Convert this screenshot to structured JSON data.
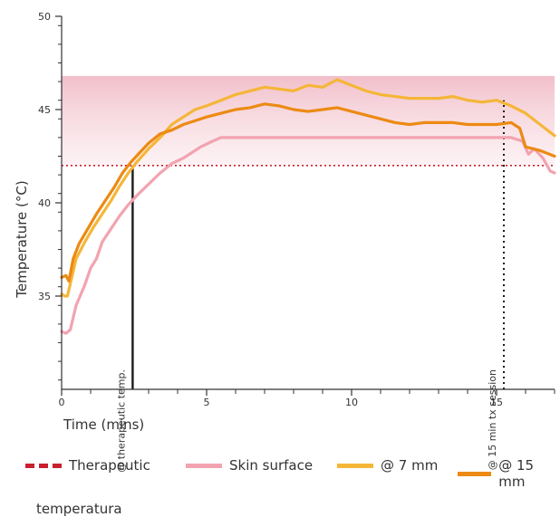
{
  "chart_data": {
    "type": "line",
    "xlabel": "Time (mins)",
    "ylabel": "Temperature (°C)",
    "xlim": [
      0,
      17
    ],
    "ylim": [
      30,
      50
    ],
    "x_ticks": [
      0,
      5,
      10,
      15
    ],
    "x_tick_labels": [
      "0",
      "5",
      "10",
      "15"
    ],
    "x_minor_ticks": [
      1,
      2,
      3,
      4,
      6,
      7,
      8,
      9,
      11,
      12,
      13,
      14,
      16,
      17
    ],
    "y_ticks": [
      35,
      40,
      45,
      50
    ],
    "y_tick_labels": [
      "35",
      "40",
      "45",
      "50"
    ],
    "grid": false,
    "legend_position": "bottom",
    "band": {
      "y_from": 42,
      "y_to": 46.8,
      "color": "#f0b8c4"
    },
    "reference_lines": [
      {
        "orientation": "horizontal",
        "value": 42,
        "style": "dotted",
        "color": "#c8202e"
      },
      {
        "orientation": "vertical",
        "value": 2.45,
        "style": "solid",
        "color": "#1a1a1a",
        "y_to": 42,
        "label": "@ therapeutic temp."
      },
      {
        "orientation": "vertical",
        "value": 15.25,
        "style": "dotted",
        "color": "#1a1a1a",
        "y_to": 45.5,
        "label": "@ 15 min tx session"
      }
    ],
    "series": [
      {
        "name": "Skin surface",
        "color": "#f2a3b0",
        "points": [
          [
            0,
            33.1
          ],
          [
            0.15,
            33.0
          ],
          [
            0.3,
            33.2
          ],
          [
            0.5,
            34.5
          ],
          [
            0.8,
            35.6
          ],
          [
            1.0,
            36.5
          ],
          [
            1.2,
            37.0
          ],
          [
            1.4,
            37.9
          ],
          [
            1.7,
            38.6
          ],
          [
            2.0,
            39.3
          ],
          [
            2.3,
            39.9
          ],
          [
            2.6,
            40.4
          ],
          [
            3.0,
            41.0
          ],
          [
            3.4,
            41.6
          ],
          [
            3.8,
            42.1
          ],
          [
            4.2,
            42.4
          ],
          [
            4.5,
            42.7
          ],
          [
            4.8,
            43.0
          ],
          [
            5.2,
            43.3
          ],
          [
            5.5,
            43.5
          ],
          [
            6,
            43.5
          ],
          [
            7,
            43.5
          ],
          [
            8,
            43.5
          ],
          [
            9,
            43.5
          ],
          [
            10,
            43.5
          ],
          [
            11,
            43.5
          ],
          [
            12,
            43.5
          ],
          [
            13,
            43.5
          ],
          [
            14,
            43.5
          ],
          [
            15,
            43.5
          ],
          [
            15.5,
            43.5
          ],
          [
            15.9,
            43.3
          ],
          [
            16.1,
            42.6
          ],
          [
            16.3,
            42.9
          ],
          [
            16.6,
            42.4
          ],
          [
            16.85,
            41.7
          ],
          [
            17,
            41.6
          ]
        ]
      },
      {
        "name": "@ 7 mm",
        "color": "#f5b638",
        "points": [
          [
            0,
            35.1
          ],
          [
            0.1,
            35.0
          ],
          [
            0.2,
            35.0
          ],
          [
            0.35,
            36.0
          ],
          [
            0.5,
            37.0
          ],
          [
            0.8,
            37.9
          ],
          [
            1.1,
            38.7
          ],
          [
            1.4,
            39.4
          ],
          [
            1.7,
            40.1
          ],
          [
            2.0,
            40.9
          ],
          [
            2.3,
            41.6
          ],
          [
            2.6,
            42.2
          ],
          [
            3.0,
            42.9
          ],
          [
            3.4,
            43.5
          ],
          [
            3.8,
            44.2
          ],
          [
            4.2,
            44.6
          ],
          [
            4.6,
            45.0
          ],
          [
            5.0,
            45.2
          ],
          [
            5.5,
            45.5
          ],
          [
            6.0,
            45.8
          ],
          [
            6.5,
            46.0
          ],
          [
            7.0,
            46.2
          ],
          [
            7.5,
            46.1
          ],
          [
            8.0,
            46.0
          ],
          [
            8.5,
            46.3
          ],
          [
            9.0,
            46.2
          ],
          [
            9.5,
            46.6
          ],
          [
            10.0,
            46.3
          ],
          [
            10.5,
            46.0
          ],
          [
            11.0,
            45.8
          ],
          [
            11.5,
            45.7
          ],
          [
            12.0,
            45.6
          ],
          [
            12.5,
            45.6
          ],
          [
            13.0,
            45.6
          ],
          [
            13.5,
            45.7
          ],
          [
            14.0,
            45.5
          ],
          [
            14.5,
            45.4
          ],
          [
            15.0,
            45.5
          ],
          [
            15.5,
            45.2
          ],
          [
            16.0,
            44.8
          ],
          [
            16.5,
            44.2
          ],
          [
            17.0,
            43.6
          ]
        ]
      },
      {
        "name": "@ 15 mm",
        "color": "#ec8a13",
        "points": [
          [
            0,
            36.0
          ],
          [
            0.15,
            36.1
          ],
          [
            0.25,
            35.8
          ],
          [
            0.4,
            37.0
          ],
          [
            0.6,
            37.8
          ],
          [
            0.9,
            38.6
          ],
          [
            1.2,
            39.4
          ],
          [
            1.5,
            40.1
          ],
          [
            1.8,
            40.8
          ],
          [
            2.1,
            41.6
          ],
          [
            2.4,
            42.2
          ],
          [
            2.7,
            42.7
          ],
          [
            3.0,
            43.2
          ],
          [
            3.4,
            43.7
          ],
          [
            3.8,
            43.9
          ],
          [
            4.2,
            44.2
          ],
          [
            4.6,
            44.4
          ],
          [
            5.0,
            44.6
          ],
          [
            5.5,
            44.8
          ],
          [
            6.0,
            45.0
          ],
          [
            6.5,
            45.1
          ],
          [
            7.0,
            45.3
          ],
          [
            7.5,
            45.2
          ],
          [
            8.0,
            45.0
          ],
          [
            8.5,
            44.9
          ],
          [
            9.0,
            45.0
          ],
          [
            9.5,
            45.1
          ],
          [
            10.0,
            44.9
          ],
          [
            10.5,
            44.7
          ],
          [
            11.0,
            44.5
          ],
          [
            11.5,
            44.3
          ],
          [
            12.0,
            44.2
          ],
          [
            12.5,
            44.3
          ],
          [
            13.0,
            44.3
          ],
          [
            13.5,
            44.3
          ],
          [
            14.0,
            44.2
          ],
          [
            14.5,
            44.2
          ],
          [
            15.0,
            44.2
          ],
          [
            15.5,
            44.3
          ],
          [
            15.8,
            44.0
          ],
          [
            16.0,
            43.0
          ],
          [
            16.5,
            42.8
          ],
          [
            17.0,
            42.5
          ]
        ]
      }
    ],
    "legend": [
      {
        "label": "Therapeutic",
        "color": "#c8202e",
        "style": "dashed"
      },
      {
        "label": "Skin surface",
        "color": "#f2a3b0",
        "style": "solid"
      },
      {
        "label": "@ 7 mm",
        "color": "#f5b638",
        "style": "solid"
      },
      {
        "label": "@ 15 mm",
        "color": "#ec8a13",
        "style": "solid"
      }
    ],
    "caption": "temperatura"
  }
}
